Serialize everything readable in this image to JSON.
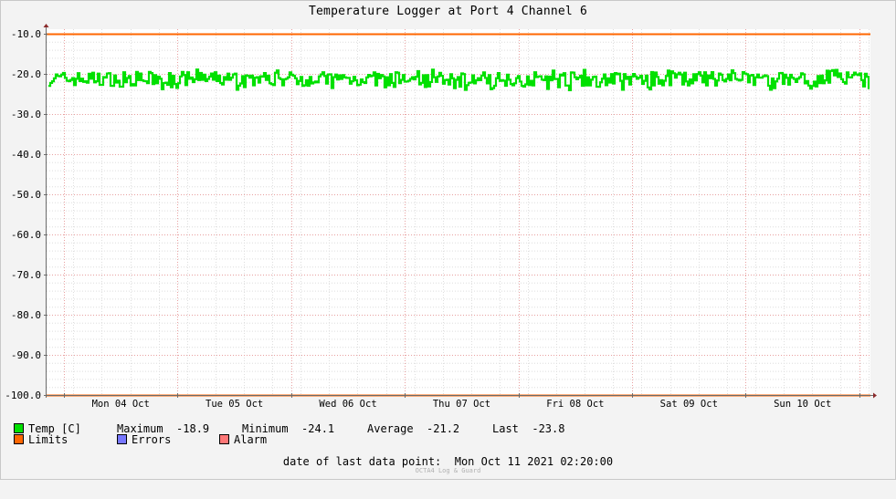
{
  "chart_data": {
    "type": "line",
    "title": "Temperature Logger at Port 4 Channel 6",
    "xlabel": "",
    "ylabel": "",
    "ylim": [
      -100,
      -10
    ],
    "y_ticks": [
      "-10.0",
      "-20.0",
      "-30.0",
      "-40.0",
      "-50.0",
      "-60.0",
      "-70.0",
      "-80.0",
      "-90.0",
      "-100.0"
    ],
    "x_tick_labels": [
      "Mon 04 Oct",
      "Tue 05 Oct",
      "Wed 06 Oct",
      "Thu 07 Oct",
      "Fri 08 Oct",
      "Sat 09 Oct",
      "Sun 10 Oct"
    ],
    "x_range": [
      "2021-10-03 20:20",
      "2021-10-11 02:20"
    ],
    "grid": true,
    "series": [
      {
        "name": "Temp [C]",
        "color": "#00e000",
        "value_range": [
          -24.1,
          -18.9
        ],
        "typical_band": [
          -23.0,
          -19.5
        ],
        "summary": {
          "maximum": -18.9,
          "minimum": -24.1,
          "average": -21.2,
          "last": -23.8
        }
      },
      {
        "name": "Limits",
        "color": "#ff6600",
        "values": [
          -10.0,
          -100.0
        ]
      },
      {
        "name": "Errors",
        "color": "#7777ff"
      },
      {
        "name": "Alarm",
        "color": "#ff7777"
      }
    ]
  },
  "legend": {
    "temp_label": "Temp [C]",
    "max_label": "Maximum",
    "max_value": "-18.9",
    "min_label": "Minimum",
    "min_value": "-24.1",
    "avg_label": "Average",
    "avg_value": "-21.2",
    "last_label": "Last",
    "last_value": "-23.8",
    "limits_label": "Limits",
    "errors_label": "Errors",
    "alarm_label": "Alarm"
  },
  "footer": {
    "label": "date of last data point:",
    "value": "Mon Oct 11 2021 02:20:00"
  },
  "watermark": "OCTA4 Log & Guard"
}
